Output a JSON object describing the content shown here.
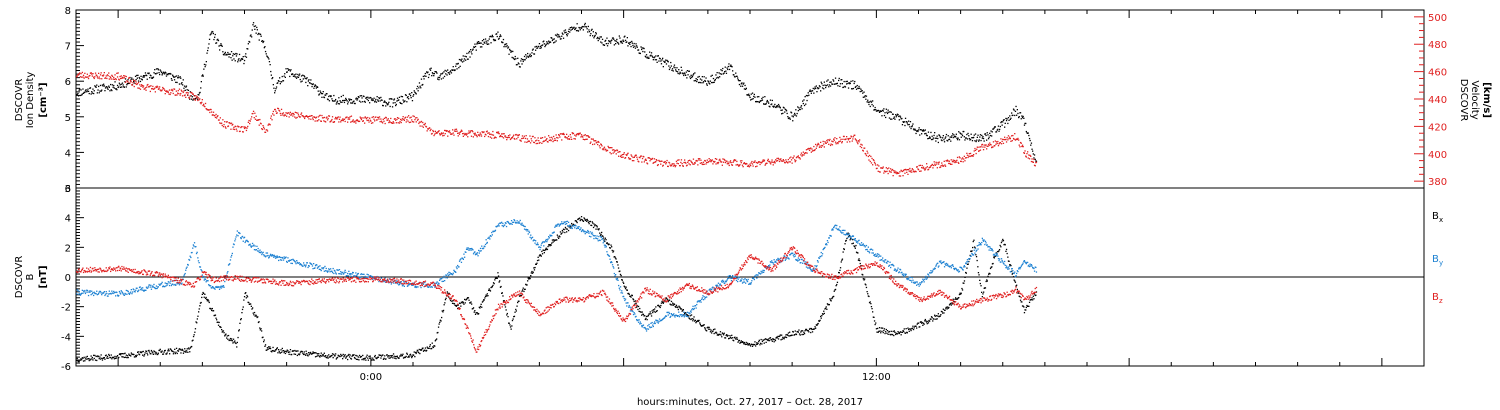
{
  "chart_data": [
    {
      "type": "scatter",
      "panel": "top",
      "ylabel_left": [
        "DSCOVR",
        "Ion Density"
      ],
      "ylabel_left_unit": "[cm⁻³]",
      "ylabel_right": [
        "DSCOVR",
        "Velocity"
      ],
      "ylabel_right_unit": "[km/s]",
      "ylim_left": [
        3,
        8
      ],
      "ylim_right": [
        375,
        505
      ],
      "left_ticks": [
        "3",
        "4",
        "5",
        "6",
        "7",
        "8"
      ],
      "right_ticks": [
        "380",
        "400",
        "420",
        "440",
        "460",
        "480",
        "500"
      ],
      "right_axis_color": "#e02020",
      "xlim_hours": [
        -7,
        25
      ],
      "series": [
        {
          "name": "Ion Density",
          "color": "#000000",
          "axis": "left",
          "x": [
            -7.0,
            -6.0,
            -5.5,
            -5.0,
            -4.5,
            -4.3,
            -4.1,
            -3.8,
            -3.5,
            -3.0,
            -2.8,
            -2.5,
            -2.3,
            -2.0,
            -1.5,
            -1.0,
            0.0,
            0.5,
            1.0,
            1.2,
            1.4,
            1.6,
            2.0,
            2.5,
            3.0,
            3.5,
            4.0,
            4.5,
            5.0,
            5.5,
            6.0,
            6.5,
            7.0,
            7.5,
            8.0,
            8.5,
            9.0,
            9.5,
            10.0,
            10.5,
            11.0,
            11.5,
            12.0,
            12.5,
            13.0,
            13.5,
            14.0,
            14.5,
            15.0,
            15.3,
            15.5,
            15.8
          ],
          "y": [
            5.7,
            5.9,
            6.1,
            6.3,
            6.0,
            5.6,
            5.6,
            7.4,
            6.8,
            6.6,
            7.6,
            6.9,
            5.8,
            6.3,
            6.0,
            5.5,
            5.5,
            5.4,
            5.6,
            6.0,
            6.3,
            6.1,
            6.4,
            7.0,
            7.3,
            6.5,
            7.0,
            7.3,
            7.6,
            7.1,
            7.2,
            6.8,
            6.5,
            6.2,
            6.0,
            6.4,
            5.6,
            5.4,
            5.0,
            5.8,
            6.0,
            5.9,
            5.2,
            5.0,
            4.6,
            4.4,
            4.5,
            4.4,
            4.8,
            5.2,
            4.9,
            3.6
          ]
        },
        {
          "name": "Velocity",
          "color": "#e02020",
          "axis": "right",
          "x": [
            -7.0,
            -6.0,
            -5.5,
            -5.0,
            -4.5,
            -4.2,
            -4.0,
            -3.5,
            -3.0,
            -2.8,
            -2.5,
            -2.3,
            -2.0,
            -1.5,
            -1.0,
            0.0,
            0.5,
            1.0,
            1.2,
            1.5,
            2.0,
            3.0,
            4.0,
            4.5,
            5.0,
            5.5,
            6.0,
            7.0,
            8.0,
            9.0,
            10.0,
            10.5,
            11.0,
            11.5,
            12.0,
            12.5,
            13.0,
            14.0,
            14.5,
            15.0,
            15.3,
            15.5,
            15.8
          ],
          "y": [
            458,
            457,
            450,
            447,
            445,
            442,
            438,
            422,
            418,
            430,
            416,
            432,
            430,
            427,
            426,
            425,
            425,
            426,
            422,
            415,
            416,
            414,
            410,
            413,
            414,
            405,
            399,
            393,
            395,
            393,
            396,
            405,
            410,
            412,
            390,
            386,
            390,
            396,
            405,
            410,
            413,
            402,
            392
          ]
        }
      ]
    },
    {
      "type": "scatter",
      "panel": "bottom",
      "ylabel": [
        "DSCOVR",
        "B"
      ],
      "ylabel_unit": "[nT]",
      "ylim": [
        -6,
        6
      ],
      "y_ticks": [
        "-6",
        "-4",
        "-2",
        "0",
        "2",
        "4",
        "6"
      ],
      "zero_line": true,
      "xlim_hours": [
        -7,
        25
      ],
      "x_tick_labels": [
        "0:00",
        "12:00"
      ],
      "x_tick_values": [
        0,
        12
      ],
      "xlabel": "hours:minutes, Oct. 27, 2017 – Oct. 28, 2017",
      "legend": [
        "B",
        "B",
        "B"
      ],
      "legend_subscripts": [
        "x",
        "y",
        "z"
      ],
      "legend_colors": [
        "#000000",
        "#1e82d2",
        "#e02020"
      ],
      "series": [
        {
          "name": "Bx",
          "color": "#000000",
          "x": [
            -7.0,
            -6.0,
            -5.0,
            -4.3,
            -4.0,
            -3.5,
            -3.2,
            -3.0,
            -2.9,
            -2.7,
            -2.5,
            -2.0,
            -1.0,
            0.0,
            1.0,
            1.5,
            1.8,
            2.0,
            2.3,
            2.5,
            3.0,
            3.3,
            3.5,
            4.0,
            4.5,
            5.0,
            5.3,
            5.7,
            6.0,
            6.5,
            7.0,
            8.0,
            9.0,
            9.5,
            10.0,
            10.5,
            11.0,
            11.3,
            11.5,
            12.0,
            12.5,
            13.0,
            13.5,
            14.0,
            14.3,
            14.5,
            14.8,
            15.0,
            15.3,
            15.5,
            15.8
          ],
          "y": [
            -5.5,
            -5.3,
            -5.0,
            -4.9,
            -1.0,
            -3.8,
            -4.5,
            -1.0,
            -1.8,
            -2.8,
            -4.8,
            -5.0,
            -5.3,
            -5.4,
            -5.2,
            -4.5,
            -1.0,
            -2.0,
            -1.5,
            -2.5,
            0.2,
            -3.5,
            -1.5,
            1.5,
            3.0,
            4.0,
            3.5,
            2.0,
            -0.5,
            -2.8,
            -1.5,
            -3.5,
            -4.5,
            -4.2,
            -3.8,
            -3.5,
            -1.0,
            3.0,
            2.0,
            -3.5,
            -3.8,
            -3.2,
            -2.5,
            -1.0,
            2.5,
            -1.2,
            1.5,
            2.5,
            -0.5,
            -2.2,
            -1.0
          ]
        },
        {
          "name": "By",
          "color": "#1e82d2",
          "x": [
            -7.0,
            -6.0,
            -5.0,
            -4.5,
            -4.2,
            -4.0,
            -3.7,
            -3.5,
            -3.2,
            -3.0,
            -2.5,
            -2.0,
            -1.0,
            0.0,
            0.5,
            1.0,
            1.5,
            2.0,
            2.3,
            2.5,
            3.0,
            3.5,
            4.0,
            4.5,
            5.0,
            5.5,
            6.0,
            6.5,
            7.0,
            7.5,
            8.0,
            8.5,
            9.0,
            9.5,
            10.0,
            10.5,
            11.0,
            11.5,
            12.0,
            12.5,
            13.0,
            13.5,
            14.0,
            14.5,
            15.0,
            15.3,
            15.5,
            15.8
          ],
          "y": [
            -1.0,
            -1.1,
            -0.5,
            -0.3,
            2.3,
            0.0,
            -0.8,
            -0.5,
            3.0,
            2.5,
            1.5,
            1.2,
            0.5,
            0.0,
            -0.3,
            -0.5,
            -0.5,
            0.5,
            2.0,
            1.5,
            3.5,
            3.8,
            2.0,
            3.8,
            3.2,
            2.5,
            -1.5,
            -3.5,
            -2.5,
            -2.5,
            -1.0,
            0.0,
            -0.3,
            1.0,
            1.5,
            0.5,
            3.5,
            2.5,
            1.5,
            0.5,
            -0.5,
            1.0,
            0.5,
            2.5,
            1.0,
            0.2,
            1.0,
            0.5
          ]
        },
        {
          "name": "Bz",
          "color": "#e02020",
          "x": [
            -7.0,
            -6.0,
            -5.0,
            -4.5,
            -4.2,
            -4.0,
            -3.7,
            -3.5,
            -3.0,
            -2.5,
            -2.0,
            -1.0,
            0.0,
            0.5,
            1.0,
            1.5,
            2.0,
            2.5,
            3.0,
            3.5,
            4.0,
            4.5,
            5.0,
            5.5,
            6.0,
            6.5,
            7.0,
            7.5,
            8.0,
            8.5,
            9.0,
            9.5,
            10.0,
            10.5,
            11.0,
            11.5,
            12.0,
            12.5,
            13.0,
            13.5,
            14.0,
            14.5,
            15.0,
            15.3,
            15.5,
            15.8
          ],
          "y": [
            0.5,
            0.6,
            0.2,
            -0.3,
            -0.5,
            0.3,
            -0.2,
            0.0,
            -0.1,
            -0.2,
            -0.4,
            -0.2,
            -0.1,
            -0.2,
            -0.3,
            -0.5,
            -1.5,
            -5.0,
            -2.0,
            -1.0,
            -2.5,
            -1.5,
            -1.5,
            -1.0,
            -3.0,
            -0.8,
            -1.5,
            -0.5,
            -1.0,
            -0.5,
            1.5,
            0.5,
            2.0,
            0.5,
            0.0,
            0.5,
            1.0,
            -0.5,
            -1.5,
            -1.0,
            -2.0,
            -1.5,
            -1.2,
            -0.8,
            -1.5,
            -0.8
          ]
        }
      ]
    }
  ]
}
